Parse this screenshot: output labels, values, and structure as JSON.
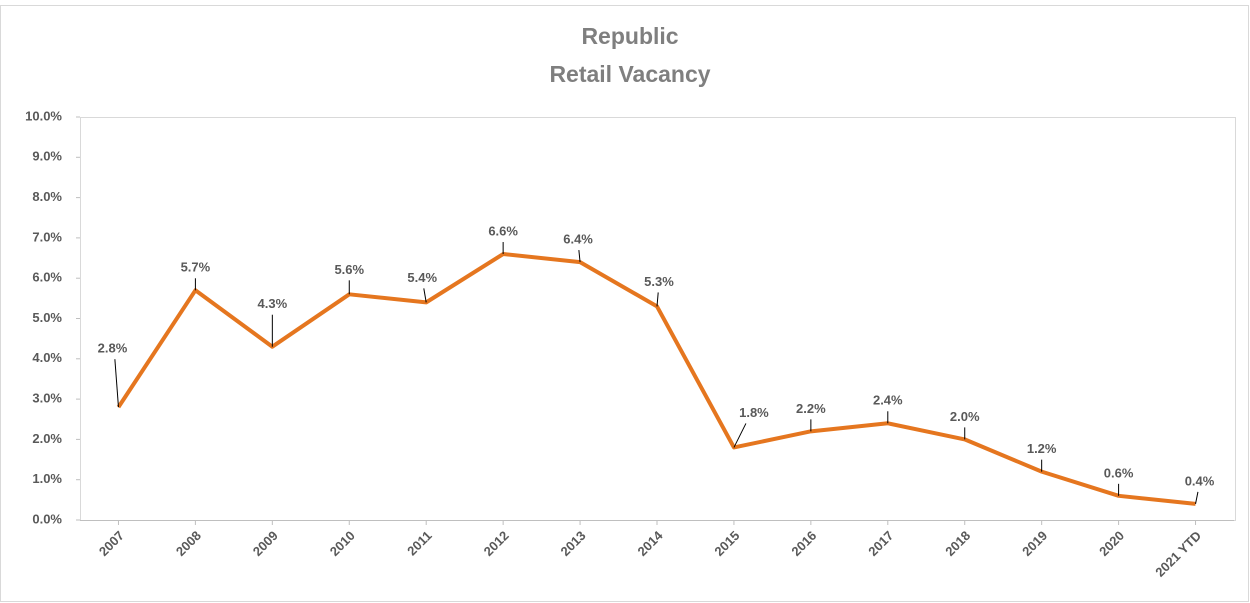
{
  "chart_data": {
    "type": "line",
    "title": [
      "Republic",
      "Retail Vacancy"
    ],
    "categories": [
      "2007",
      "2008",
      "2009",
      "2010",
      "2011",
      "2012",
      "2013",
      "2014",
      "2015",
      "2016",
      "2017",
      "2018",
      "2019",
      "2020",
      "2021 YTD"
    ],
    "values": [
      2.8,
      5.7,
      4.3,
      5.6,
      5.4,
      6.6,
      6.4,
      5.3,
      1.8,
      2.2,
      2.4,
      2.0,
      1.2,
      0.6,
      0.4
    ],
    "value_labels": [
      "2.8%",
      "5.7%",
      "4.3%",
      "5.6%",
      "5.4%",
      "6.6%",
      "6.4%",
      "5.3%",
      "1.8%",
      "2.2%",
      "2.4%",
      "2.0%",
      "1.2%",
      "0.6%",
      "0.4%"
    ],
    "color": "#e5761f",
    "ylim": [
      0,
      10
    ],
    "yticks": [
      {
        "value": 0,
        "label": "0.0%"
      },
      {
        "value": 1,
        "label": "1.0%"
      },
      {
        "value": 2,
        "label": "2.0%"
      },
      {
        "value": 3,
        "label": "3.0%"
      },
      {
        "value": 4,
        "label": "4.0%"
      },
      {
        "value": 5,
        "label": "5.0%"
      },
      {
        "value": 6,
        "label": "6.0%"
      },
      {
        "value": 7,
        "label": "7.0%"
      },
      {
        "value": 8,
        "label": "8.0%"
      },
      {
        "value": 9,
        "label": "9.0%"
      },
      {
        "value": 10,
        "label": "10.0%"
      }
    ],
    "grid": false
  }
}
